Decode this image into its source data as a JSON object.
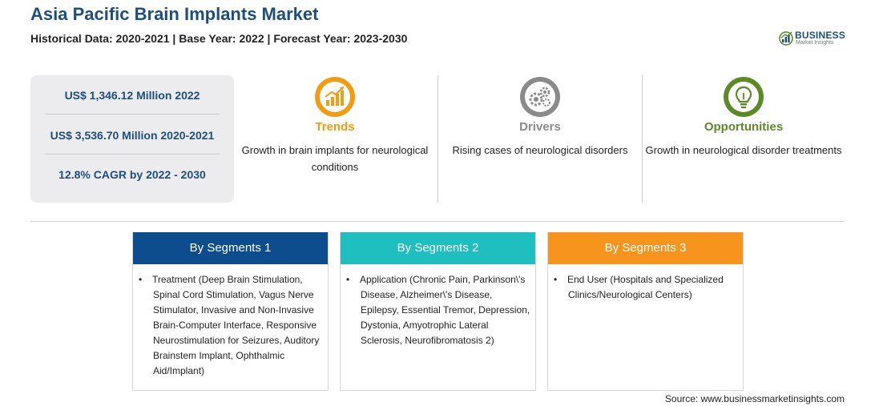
{
  "header": {
    "title": "Asia Pacific Brain Implants Market",
    "subtitle": "Historical Data: 2020-2021 | Base Year: 2022 | Forecast Year: 2023-2030"
  },
  "logo": {
    "name": "BUSINESS",
    "tagline": "Market Insights"
  },
  "stats": [
    "US$ 1,346.12 Million 2022",
    "US$ 3,536.70 Million 2020-2021",
    "12.8% CAGR by 2022 - 2030"
  ],
  "kpis": [
    {
      "title": "Trends",
      "text": "Growth in brain implants for neurological conditions",
      "color": "#f39c12",
      "icon": "growth-chart-icon"
    },
    {
      "title": "Drivers",
      "text": "Rising cases of neurological disorders",
      "color": "#8a8a8a",
      "icon": "gears-icon"
    },
    {
      "title": "Opportunities",
      "text": "Growth in neurological disorder treatments",
      "color": "#5b8a26",
      "icon": "lightbulb-icon"
    }
  ],
  "segments": [
    {
      "title": "By Segments 1",
      "color": "#0d4d8e",
      "text": "Treatment (Deep Brain Stimulation, Spinal Cord Stimulation, Vagus Nerve Stimulator, Invasive and Non-Invasive Brain-Computer Interface, Responsive Neurostimulation for Seizures, Auditory Brainstem Implant, Ophthalmic Aid/Implant)"
    },
    {
      "title": "By Segments 2",
      "color": "#1fbfbf",
      "text": "Application (Chronic Pain, Parkinson\\'s Disease, Alzheimer\\'s Disease, Epilepsy, Essential Tremor, Depression, Dystonia, Amyotrophic Lateral Sclerosis, Neurofibromatosis 2)"
    },
    {
      "title": "By Segments 3",
      "color": "#f7941d",
      "text": "End User (Hospitals and Specialized Clinics/Neurological Centers)"
    }
  ],
  "bullet": "•",
  "source": "Source: www.businessmarketinsights.com"
}
